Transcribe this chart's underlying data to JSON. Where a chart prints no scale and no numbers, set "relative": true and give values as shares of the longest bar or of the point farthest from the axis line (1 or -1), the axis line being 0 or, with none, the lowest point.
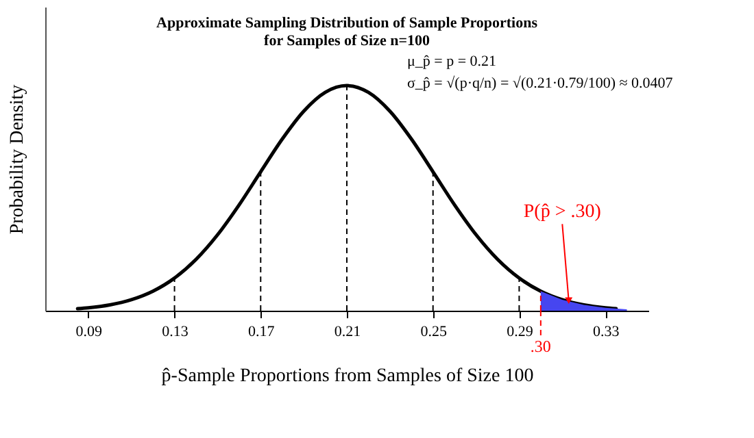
{
  "chart_data": {
    "type": "line",
    "title": "Approximate Sampling Distribution of Sample Proportions for Samples of Size n=100",
    "xlabel": "p̂-Sample Proportions from Samples of Size 100",
    "ylabel": "Probability Density",
    "relative": true,
    "xlim": [
      0.07,
      0.35
    ],
    "xticks": [
      0.09,
      0.13,
      0.17,
      0.21,
      0.25,
      0.29,
      0.33
    ],
    "grid": false,
    "marker": "none",
    "line_style": "solid",
    "series": [
      {
        "color": "#000000",
        "x": [
          0.085,
          0.09,
          0.1,
          0.11,
          0.12,
          0.13,
          0.14,
          0.15,
          0.16,
          0.17,
          0.18,
          0.19,
          0.2,
          0.21,
          0.22,
          0.23,
          0.24,
          0.25,
          0.26,
          0.27,
          0.28,
          0.29,
          0.3,
          0.31,
          0.32,
          0.33,
          0.335
        ],
        "values": [
          0.009,
          0.013,
          0.0259,
          0.0489,
          0.0867,
          0.1449,
          0.2279,
          0.3373,
          0.4702,
          0.617,
          0.7622,
          0.8863,
          0.9703,
          1,
          0.9703,
          0.8863,
          0.7622,
          0.617,
          0.4702,
          0.3373,
          0.2279,
          0.1449,
          0.0867,
          0.0489,
          0.0259,
          0.013,
          0.009
        ]
      },
      {
        "type": "area",
        "color": "#4646f0",
        "x": [
          0.3,
          0.31,
          0.32,
          0.33,
          0.34
        ],
        "values": [
          0.0867,
          0.0489,
          0.0259,
          0.013,
          0.0061
        ]
      }
    ],
    "ref_lines": [
      {
        "axis": "x",
        "value": 0.13,
        "color": "#000000",
        "line_style": "dashed"
      },
      {
        "axis": "x",
        "value": 0.17,
        "color": "#000000",
        "line_style": "dashed"
      },
      {
        "axis": "x",
        "value": 0.21,
        "color": "#000000",
        "line_style": "dashed"
      },
      {
        "axis": "x",
        "value": 0.25,
        "color": "#000000",
        "line_style": "dashed"
      },
      {
        "axis": "x",
        "value": 0.29,
        "color": "#000000",
        "line_style": "dashed"
      },
      {
        "axis": "x",
        "value": 0.3,
        "color": "#ff0000",
        "line_style": "dashed",
        "label": ".30"
      }
    ],
    "annotations": [
      {
        "text": "P(p̂ > .30)",
        "x": 0.313,
        "y": 0.045
      },
      "μ_p̂ = p = 0.21",
      "σ_p̂ = √(p·q/n) = √(0.21·0.79/100) ≈ 0.0407"
    ]
  }
}
